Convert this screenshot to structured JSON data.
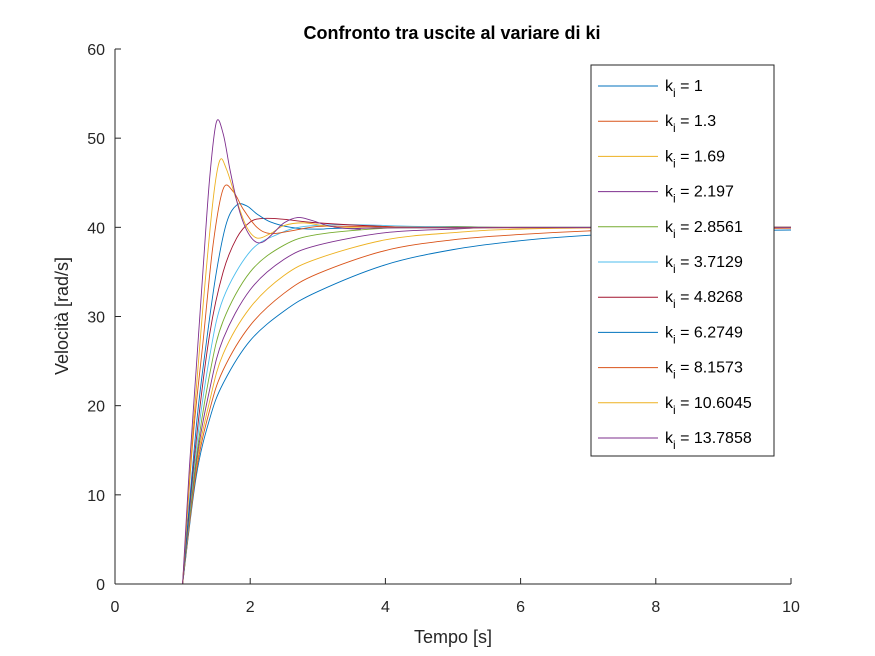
{
  "chart_data": {
    "type": "line",
    "title": "Confronto tra uscite al variare di ki",
    "xlabel": "Tempo [s]",
    "ylabel": "Velocità [rad/s]",
    "xlim": [
      0,
      10
    ],
    "ylim": [
      0,
      60
    ],
    "xticks": [
      "0",
      "2",
      "4",
      "6",
      "8",
      "10"
    ],
    "yticks": [
      "0",
      "10",
      "20",
      "30",
      "40",
      "50",
      "60"
    ],
    "grid": false,
    "legend_position": "top-right",
    "legend_prefix": "k",
    "legend_subscript": "i",
    "step_time": 1,
    "setpoint": 40,
    "series": [
      {
        "name": "1",
        "color": "#0072BD",
        "points": [
          [
            0.35,
            0
          ],
          [
            1,
            0
          ],
          [
            1.2,
            12
          ],
          [
            1.4,
            18.5
          ],
          [
            1.6,
            22.5
          ],
          [
            2,
            27.3
          ],
          [
            2.5,
            30.6
          ],
          [
            3,
            32.8
          ],
          [
            4,
            35.8
          ],
          [
            5,
            37.5
          ],
          [
            6,
            38.5
          ],
          [
            7,
            39.1
          ],
          [
            8,
            39.4
          ],
          [
            9,
            39.6
          ],
          [
            10,
            39.7
          ]
        ]
      },
      {
        "name": "1.3",
        "color": "#D95319",
        "points": [
          [
            0.35,
            0
          ],
          [
            1,
            0
          ],
          [
            1.2,
            12.5
          ],
          [
            1.4,
            19.5
          ],
          [
            1.6,
            24
          ],
          [
            2,
            29
          ],
          [
            2.5,
            32.6
          ],
          [
            3,
            34.8
          ],
          [
            4,
            37.4
          ],
          [
            5,
            38.6
          ],
          [
            6,
            39.2
          ],
          [
            7,
            39.6
          ],
          [
            8,
            39.8
          ],
          [
            10,
            39.9
          ]
        ]
      },
      {
        "name": "1.69",
        "color": "#EDB120",
        "points": [
          [
            0.35,
            0
          ],
          [
            1,
            0
          ],
          [
            1.2,
            13
          ],
          [
            1.4,
            20.5
          ],
          [
            1.6,
            25.8
          ],
          [
            2,
            31
          ],
          [
            2.5,
            34.6
          ],
          [
            3,
            36.5
          ],
          [
            4,
            38.6
          ],
          [
            5,
            39.4
          ],
          [
            6,
            39.8
          ],
          [
            8,
            40
          ],
          [
            10,
            40
          ]
        ]
      },
      {
        "name": "2.197",
        "color": "#7E2F8E",
        "points": [
          [
            0.35,
            0
          ],
          [
            1,
            0
          ],
          [
            1.2,
            13.5
          ],
          [
            1.4,
            21.8
          ],
          [
            1.6,
            27.5
          ],
          [
            2,
            33
          ],
          [
            2.5,
            36.4
          ],
          [
            3,
            38
          ],
          [
            4,
            39.4
          ],
          [
            5,
            39.8
          ],
          [
            6,
            40
          ],
          [
            10,
            40
          ]
        ]
      },
      {
        "name": "2.8561",
        "color": "#77AC30",
        "points": [
          [
            0.35,
            0
          ],
          [
            1,
            0
          ],
          [
            1.2,
            14
          ],
          [
            1.4,
            23.5
          ],
          [
            1.6,
            29.5
          ],
          [
            2,
            35
          ],
          [
            2.5,
            38
          ],
          [
            3,
            39.2
          ],
          [
            4,
            39.9
          ],
          [
            5,
            40.1
          ],
          [
            6,
            40
          ],
          [
            10,
            40
          ]
        ]
      },
      {
        "name": "3.7129",
        "color": "#4DBEEE",
        "points": [
          [
            0.35,
            0
          ],
          [
            1,
            0
          ],
          [
            1.2,
            15
          ],
          [
            1.4,
            25.5
          ],
          [
            1.6,
            32
          ],
          [
            2,
            37.3
          ],
          [
            2.4,
            39.2
          ],
          [
            2.8,
            40.1
          ],
          [
            3.5,
            40.3
          ],
          [
            4.5,
            40.1
          ],
          [
            6,
            40
          ],
          [
            10,
            40
          ]
        ]
      },
      {
        "name": "4.8268",
        "color": "#A2142F",
        "points": [
          [
            0.35,
            0
          ],
          [
            1,
            0
          ],
          [
            1.2,
            16
          ],
          [
            1.4,
            28
          ],
          [
            1.6,
            35
          ],
          [
            1.8,
            38.8
          ],
          [
            2,
            40.6
          ],
          [
            2.2,
            41
          ],
          [
            2.5,
            40.9
          ],
          [
            3,
            40.5
          ],
          [
            4,
            40.1
          ],
          [
            5,
            39.95
          ],
          [
            10,
            40
          ]
        ]
      },
      {
        "name": "6.2749",
        "color": "#0072BD",
        "points": [
          [
            0.35,
            0
          ],
          [
            1,
            0
          ],
          [
            1.2,
            17.5
          ],
          [
            1.35,
            27
          ],
          [
            1.5,
            35
          ],
          [
            1.65,
            40.5
          ],
          [
            1.8,
            42.5
          ],
          [
            1.95,
            42.4
          ],
          [
            2.1,
            41.5
          ],
          [
            2.3,
            40.6
          ],
          [
            2.6,
            40
          ],
          [
            3,
            39.8
          ],
          [
            4,
            39.95
          ],
          [
            10,
            40
          ]
        ]
      },
      {
        "name": "8.1573",
        "color": "#D95319",
        "points": [
          [
            0.35,
            0
          ],
          [
            1,
            0
          ],
          [
            1.15,
            16
          ],
          [
            1.3,
            27
          ],
          [
            1.45,
            38
          ],
          [
            1.6,
            44.3
          ],
          [
            1.75,
            44
          ],
          [
            1.9,
            42
          ],
          [
            2.1,
            40
          ],
          [
            2.3,
            39.3
          ],
          [
            2.6,
            39.6
          ],
          [
            3,
            40.1
          ],
          [
            3.5,
            40.1
          ],
          [
            5,
            40
          ],
          [
            10,
            40
          ]
        ]
      },
      {
        "name": "10.6045",
        "color": "#EDB120",
        "points": [
          [
            0.35,
            0
          ],
          [
            1,
            0
          ],
          [
            1.15,
            17
          ],
          [
            1.3,
            31
          ],
          [
            1.45,
            43
          ],
          [
            1.55,
            47.5
          ],
          [
            1.65,
            46.5
          ],
          [
            1.8,
            43
          ],
          [
            1.95,
            40
          ],
          [
            2.1,
            38.8
          ],
          [
            2.3,
            39.3
          ],
          [
            2.5,
            40.2
          ],
          [
            2.8,
            40.5
          ],
          [
            3.2,
            40.1
          ],
          [
            4,
            39.95
          ],
          [
            10,
            40
          ]
        ]
      },
      {
        "name": "13.7858",
        "color": "#7E2F8E",
        "points": [
          [
            0.35,
            0
          ],
          [
            1,
            0
          ],
          [
            1.1,
            13
          ],
          [
            1.2,
            24
          ],
          [
            1.3,
            35
          ],
          [
            1.4,
            45.5
          ],
          [
            1.5,
            51.8
          ],
          [
            1.6,
            50.5
          ],
          [
            1.7,
            46.5
          ],
          [
            1.8,
            43
          ],
          [
            1.9,
            40.5
          ],
          [
            2,
            39
          ],
          [
            2.1,
            38.3
          ],
          [
            2.2,
            38.4
          ],
          [
            2.35,
            39.4
          ],
          [
            2.5,
            40.5
          ],
          [
            2.7,
            41.1
          ],
          [
            2.9,
            40.8
          ],
          [
            3.2,
            40.1
          ],
          [
            3.6,
            39.8
          ],
          [
            4.2,
            39.95
          ],
          [
            10,
            40
          ]
        ]
      }
    ]
  }
}
